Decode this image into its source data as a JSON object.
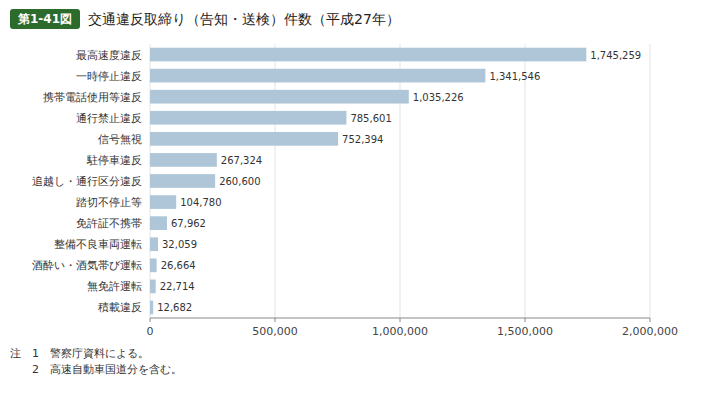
{
  "chart_data": {
    "type": "bar",
    "orientation": "horizontal",
    "title": "交通違反取締り（告知・送検）件数（平成27年）",
    "subtitle": "第1-41図",
    "categories": [
      "最高速度違反",
      "一時停止違反",
      "携帯電話使用等違反",
      "通行禁止違反",
      "信号無視",
      "駐停車違反",
      "追越し・通行区分違反",
      "踏切不停止等",
      "免許証不携帯",
      "整備不良車両運転",
      "酒酔い・酒気帯び運転",
      "無免許運転",
      "積載違反"
    ],
    "values": [
      1745259,
      1341546,
      1035226,
      785601,
      752394,
      267324,
      260600,
      104780,
      67962,
      32059,
      26664,
      22714,
      12682
    ],
    "value_labels": [
      "1,745,259",
      "1,341,546",
      "1,035,226",
      "785,601",
      "752,394",
      "267,324",
      "260,600",
      "104,780",
      "67,962",
      "32,059",
      "26,664",
      "22,714",
      "12,682"
    ],
    "data_labels": true,
    "color": "#aec6d8",
    "xlim": [
      0,
      2000000
    ],
    "xticks": [
      0,
      {
        "value": 500000,
        "label": "500,000"
      },
      {
        "value": 1000000,
        "label": "1,000,000"
      },
      {
        "value": 1500000,
        "label": "1,500,000"
      },
      {
        "value": 2000000,
        "label": "2,000,000"
      }
    ],
    "grid": true,
    "annotations": [
      "注　1　警察庁資料による。",
      "　　2　高速自動車国道分を含む。"
    ]
  }
}
